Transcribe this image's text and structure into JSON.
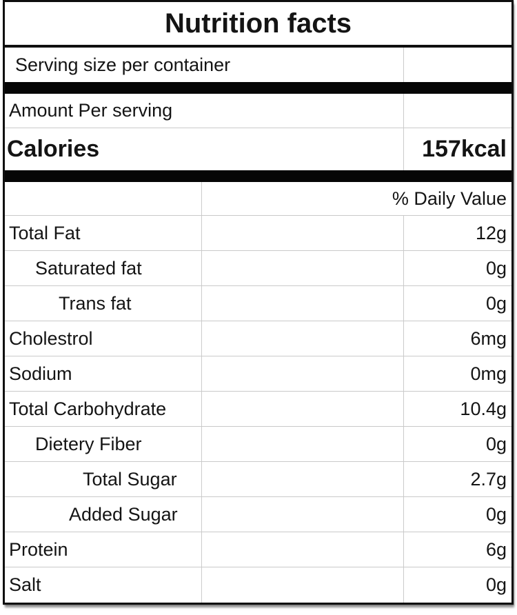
{
  "title": "Nutrition facts",
  "serving": {
    "label": "Serving size per container"
  },
  "amount": {
    "label": "Amount Per serving"
  },
  "calories": {
    "label": "Calories",
    "value": "157kcal"
  },
  "daily_value_header": "% Daily Value",
  "nutrients": [
    {
      "name": "Total Fat",
      "value": "12g",
      "indent": 0
    },
    {
      "name": "Saturated fat",
      "value": "0g",
      "indent": 1
    },
    {
      "name": "Trans fat",
      "value": "0g",
      "indent": 2
    },
    {
      "name": "Cholestrol",
      "value": "6mg",
      "indent": 0
    },
    {
      "name": "Sodium",
      "value": "0mg",
      "indent": 0
    },
    {
      "name": "Total Carbohydrate",
      "value": "10.4g",
      "indent": 0
    },
    {
      "name": "Dietery Fiber",
      "value": "0g",
      "indent": 1
    },
    {
      "name": "Total Sugar",
      "value": "2.7g",
      "indent": 4
    },
    {
      "name": "Added Sugar",
      "value": "0g",
      "indent": 3
    },
    {
      "name": "Protein",
      "value": "6g",
      "indent": 0
    },
    {
      "name": "Salt",
      "value": "0g",
      "indent": 0
    }
  ],
  "colors": {
    "background": "#ffffff",
    "border": "#0e0e0e",
    "gridline": "#c9c9c9",
    "separator_bar": "#060606",
    "text": "#141414"
  }
}
